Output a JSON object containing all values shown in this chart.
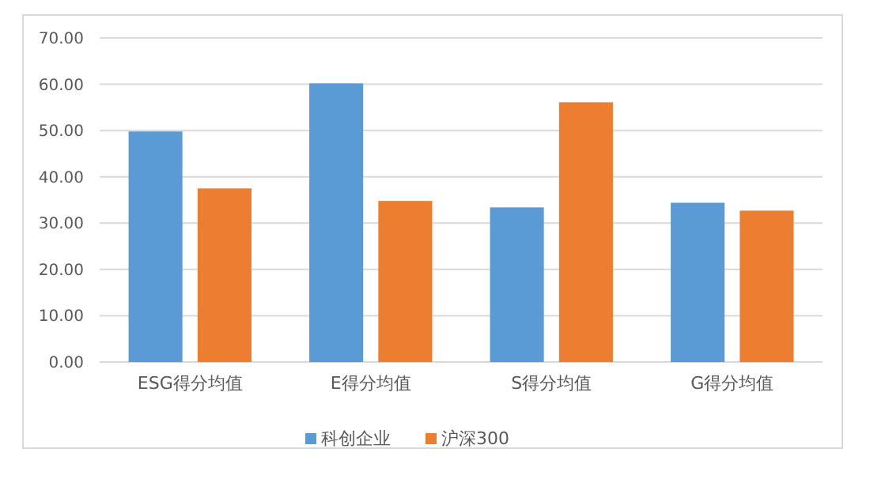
{
  "chart_data": {
    "type": "bar",
    "categories": [
      "ESG得分均值",
      "E得分均值",
      "S得分均值",
      "G得分均值"
    ],
    "series": [
      {
        "name": "科创企业",
        "color": "#5b9bd5",
        "values": [
          49.8,
          60.2,
          33.4,
          34.4
        ]
      },
      {
        "name": "沪深300",
        "color": "#ed7d31",
        "values": [
          37.5,
          34.8,
          56.1,
          32.7
        ]
      }
    ],
    "ylim": [
      0,
      70
    ],
    "yticks": [
      {
        "value": 0,
        "label": "0.00"
      },
      {
        "value": 10,
        "label": "10.00"
      },
      {
        "value": 20,
        "label": "20.00"
      },
      {
        "value": 30,
        "label": "30.00"
      },
      {
        "value": 40,
        "label": "40.00"
      },
      {
        "value": 50,
        "label": "50.00"
      },
      {
        "value": 60,
        "label": "60.00"
      },
      {
        "value": 70,
        "label": "70.00"
      }
    ],
    "grid": "y",
    "legend": "bottom"
  }
}
